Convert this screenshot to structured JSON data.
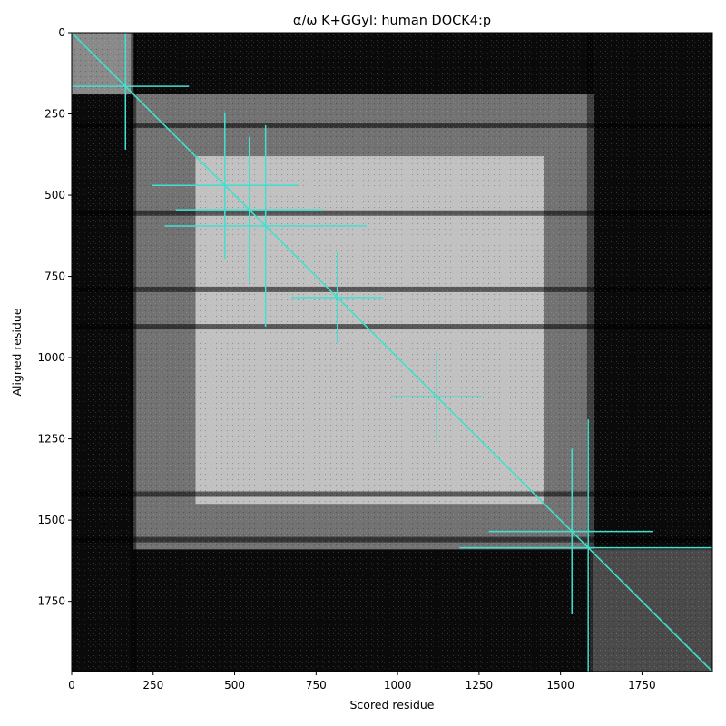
{
  "chart_data": {
    "type": "heatmap",
    "title": "α/ω K+GGyl: human DOCK4:p",
    "xlabel": "Scored residue",
    "ylabel": "Aligned residue",
    "xlim": [
      0,
      1966
    ],
    "ylim": [
      1966,
      0
    ],
    "y_axis_inverted": true,
    "grid": false,
    "legend": "none",
    "colormap": "grayscale",
    "xticks": [
      0,
      250,
      500,
      750,
      1000,
      1250,
      1500,
      1750
    ],
    "yticks": [
      0,
      250,
      500,
      750,
      1000,
      1250,
      1500,
      1750
    ],
    "colors": {
      "overlay": "#40e0d0",
      "heatmap_dark": "#0a0a0a",
      "heatmap_light": "#f2f2f2"
    },
    "bright_block_regions": [
      {
        "x_range": [
          0,
          190
        ],
        "y_range": [
          0,
          190
        ],
        "intensity": 0.55
      },
      {
        "x_range": [
          190,
          1600
        ],
        "y_range": [
          190,
          1590
        ],
        "intensity": 0.45
      },
      {
        "x_range": [
          380,
          1450
        ],
        "y_range": [
          380,
          1450
        ],
        "intensity": 0.62
      },
      {
        "x_range": [
          1590,
          1966
        ],
        "y_range": [
          1590,
          1966
        ],
        "intensity": 0.28
      }
    ],
    "dark_horizontal_bands": [
      285,
      555,
      790,
      905,
      1420,
      1560
    ],
    "dark_vertical_bands": [
      190,
      1590
    ],
    "diagonal_line": {
      "from": [
        0,
        0
      ],
      "to": [
        1966,
        1966
      ]
    },
    "crosses": [
      {
        "x": 165,
        "y": 165,
        "x_extent": [
          0,
          360
        ],
        "y_extent": [
          0,
          360
        ]
      },
      {
        "x": 470,
        "y": 470,
        "x_extent": [
          245,
          695
        ],
        "y_extent": [
          245,
          695
        ]
      },
      {
        "x": 545,
        "y": 545,
        "x_extent": [
          320,
          770
        ],
        "y_extent": [
          320,
          770
        ]
      },
      {
        "x": 595,
        "y": 595,
        "x_extent": [
          285,
          905
        ],
        "y_extent": [
          285,
          905
        ]
      },
      {
        "x": 815,
        "y": 815,
        "x_extent": [
          675,
          955
        ],
        "y_extent": [
          675,
          955
        ]
      },
      {
        "x": 1120,
        "y": 1120,
        "x_extent": [
          980,
          1260
        ],
        "y_extent": [
          980,
          1260
        ]
      },
      {
        "x": 1535,
        "y": 1535,
        "x_extent": [
          1280,
          1785
        ],
        "y_extent": [
          1280,
          1790
        ]
      },
      {
        "x": 1585,
        "y": 1585,
        "x_extent": [
          1190,
          1966
        ],
        "y_extent": [
          1190,
          1966
        ]
      }
    ]
  }
}
